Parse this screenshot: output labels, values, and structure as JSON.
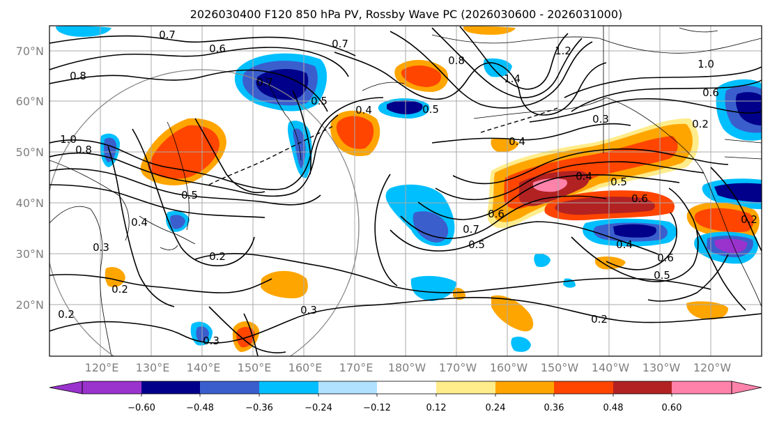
{
  "title": "2026030400 F120 850 hPa PV, Rossby Wave PC (2026030600 - 2026031000)",
  "axes": {
    "lat_labels": [
      "70°N",
      "60°N",
      "50°N",
      "40°N",
      "30°N",
      "20°N"
    ],
    "lon_labels": [
      "120°E",
      "130°E",
      "140°E",
      "150°E",
      "160°E",
      "170°E",
      "180°W",
      "170°W",
      "160°W",
      "150°W",
      "140°W",
      "130°W",
      "120°W"
    ]
  },
  "colorbar": {
    "tick_labels": [
      "−0.60",
      "−0.48",
      "−0.36",
      "−0.24",
      "−0.12",
      "0.12",
      "0.24",
      "0.36",
      "0.48",
      "0.60"
    ],
    "colors": [
      "#9a32cd",
      "#00008b",
      "#3a5fcd",
      "#00bfff",
      "#b0e2ff",
      "#ffffff",
      "#ffec8b",
      "#ffa500",
      "#ff4500",
      "#b22222",
      "#ff82ab"
    ]
  },
  "contour_labels": [
    {
      "text": "0.7"
    },
    {
      "text": "0.6"
    },
    {
      "text": "0.8"
    },
    {
      "text": "0.7"
    },
    {
      "text": "0.5"
    },
    {
      "text": "0.4"
    },
    {
      "text": "0.5"
    },
    {
      "text": "0.8"
    },
    {
      "text": "1.2"
    },
    {
      "text": "1.4"
    },
    {
      "text": "1.0"
    },
    {
      "text": "0.6"
    },
    {
      "text": "0.2"
    },
    {
      "text": "0.3"
    },
    {
      "text": "0.4"
    },
    {
      "text": "0.4"
    },
    {
      "text": "0.5"
    },
    {
      "text": "0.6"
    },
    {
      "text": "0.7"
    },
    {
      "text": "0.6"
    },
    {
      "text": "0.5"
    },
    {
      "text": "0.4"
    },
    {
      "text": "0.6"
    },
    {
      "text": "0.5"
    },
    {
      "text": "0.2"
    },
    {
      "text": "0.2"
    },
    {
      "text": "0.3"
    },
    {
      "text": "0.3"
    },
    {
      "text": "0.2"
    },
    {
      "text": "0.4"
    },
    {
      "text": "0.3"
    },
    {
      "text": "0.2"
    },
    {
      "text": "0.5"
    },
    {
      "text": "0.8"
    },
    {
      "text": "1.0"
    },
    {
      "text": "0.2"
    },
    {
      "text": "0.7"
    }
  ],
  "legend_colors": {
    "contour_line": "#000000",
    "grid_line": "#aaaaaa",
    "circle": "#888888"
  }
}
